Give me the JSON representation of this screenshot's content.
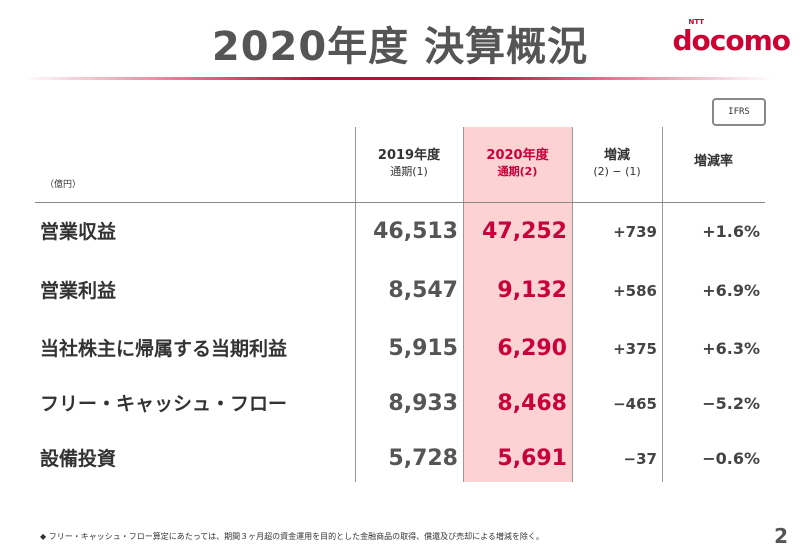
{
  "header": {
    "title": "2020年度 決算概況",
    "logo_text": "docomo",
    "logo_super": "NTT",
    "badge": "IFRS"
  },
  "table": {
    "unit": "（億円）",
    "columns": [
      {
        "label": "2019年度",
        "sub": "通期(1)"
      },
      {
        "label": "2020年度",
        "sub": "通期(2)"
      },
      {
        "label": "増減",
        "sub": "(2) − (1)"
      },
      {
        "label": "増減率",
        "sub": ""
      }
    ],
    "rows": [
      {
        "label": "営業収益",
        "v2019": "46,513",
        "v2020": "47,252",
        "diff": "+739",
        "rate": "+1.6%"
      },
      {
        "label": "営業利益",
        "v2019": "8,547",
        "v2020": "9,132",
        "diff": "+586",
        "rate": "+6.9%"
      },
      {
        "label": "当社株主に帰属する当期利益",
        "v2019": "5,915",
        "v2020": "6,290",
        "diff": "+375",
        "rate": "+6.3%"
      },
      {
        "label": "フリー・キャッシュ・フロー",
        "v2019": "8,933",
        "v2020": "8,468",
        "diff": "−465",
        "rate": "−5.2%"
      },
      {
        "label": "設備投資",
        "v2019": "5,728",
        "v2020": "5,691",
        "diff": "−37",
        "rate": "−0.6%"
      }
    ]
  },
  "footer": {
    "note": "◆ フリー・キャッシュ・フロー算定にあたっては、期間３ヶ月超の資金運用を目的とした金融商品の取得、償還及び売却による増減を除く。",
    "page": "2"
  },
  "colors": {
    "accent": "#cc0033",
    "highlight": "#fcd2d2"
  }
}
